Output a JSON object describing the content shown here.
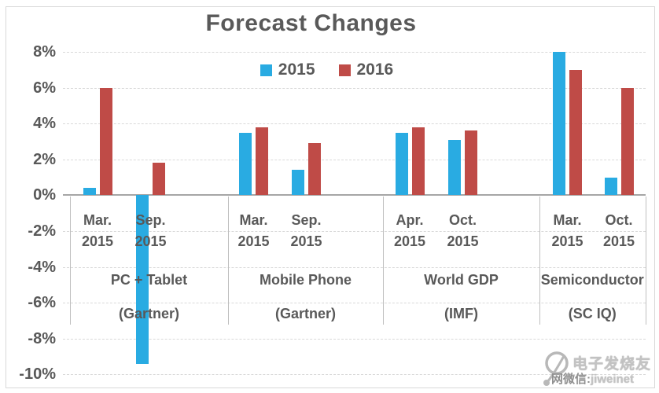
{
  "chart_data": {
    "type": "bar",
    "title": "Forecast Changes",
    "xlabel": "",
    "ylabel": "",
    "ylim": [
      -10,
      8
    ],
    "ytick_step": 2,
    "grid": "horizontal-dashed",
    "legend_position": "top-center",
    "y_ticks": [
      {
        "label": "8%",
        "value": 8
      },
      {
        "label": "6%",
        "value": 6
      },
      {
        "label": "4%",
        "value": 4
      },
      {
        "label": "2%",
        "value": 2
      },
      {
        "label": "0%",
        "value": 0
      },
      {
        "label": "-2%",
        "value": -2
      },
      {
        "label": "-4%",
        "value": -4
      },
      {
        "label": "-6%",
        "value": -6
      },
      {
        "label": "-8%",
        "value": -8
      },
      {
        "label": "-10%",
        "value": -10
      }
    ],
    "categories": [
      {
        "line1": "Mar.",
        "line2": "2015"
      },
      {
        "line1": "Sep.",
        "line2": "2015"
      },
      {
        "line1": "Mar.",
        "line2": "2015"
      },
      {
        "line1": "Sep.",
        "line2": "2015"
      },
      {
        "line1": "Apr.",
        "line2": "2015"
      },
      {
        "line1": "Oct.",
        "line2": "2015"
      },
      {
        "line1": "Mar.",
        "line2": "2015"
      },
      {
        "line1": "Oct.",
        "line2": "2015"
      }
    ],
    "groups": [
      {
        "name": "PC + Tablet",
        "source": "(Gartner)"
      },
      {
        "name": "Mobile Phone",
        "source": "(Gartner)"
      },
      {
        "name": "World GDP",
        "source": "(IMF)"
      },
      {
        "name": "Semiconductor",
        "source": "(SC IQ)"
      }
    ],
    "series": [
      {
        "name": "2015",
        "color": "#29ABE2",
        "values": [
          0.4,
          -9.4,
          3.5,
          1.4,
          3.5,
          3.1,
          8.0,
          1.0
        ]
      },
      {
        "name": "2016",
        "color": "#BF4B47",
        "values": [
          6.0,
          1.8,
          3.8,
          2.9,
          3.8,
          3.6,
          7.0,
          6.0
        ]
      }
    ]
  },
  "watermark": {
    "line1": "电子发烧友",
    "line2_prefix": "网微信:",
    "line2_suffix": "jiweinet"
  },
  "colors": {
    "text": "#595959",
    "gridline": "#D9D9D9",
    "zero_axis": "#A6A6A6",
    "separator": "#BFBFBF",
    "frame": "#D9D9D9",
    "series_2015": "#29ABE2",
    "series_2016": "#BF4B47"
  }
}
